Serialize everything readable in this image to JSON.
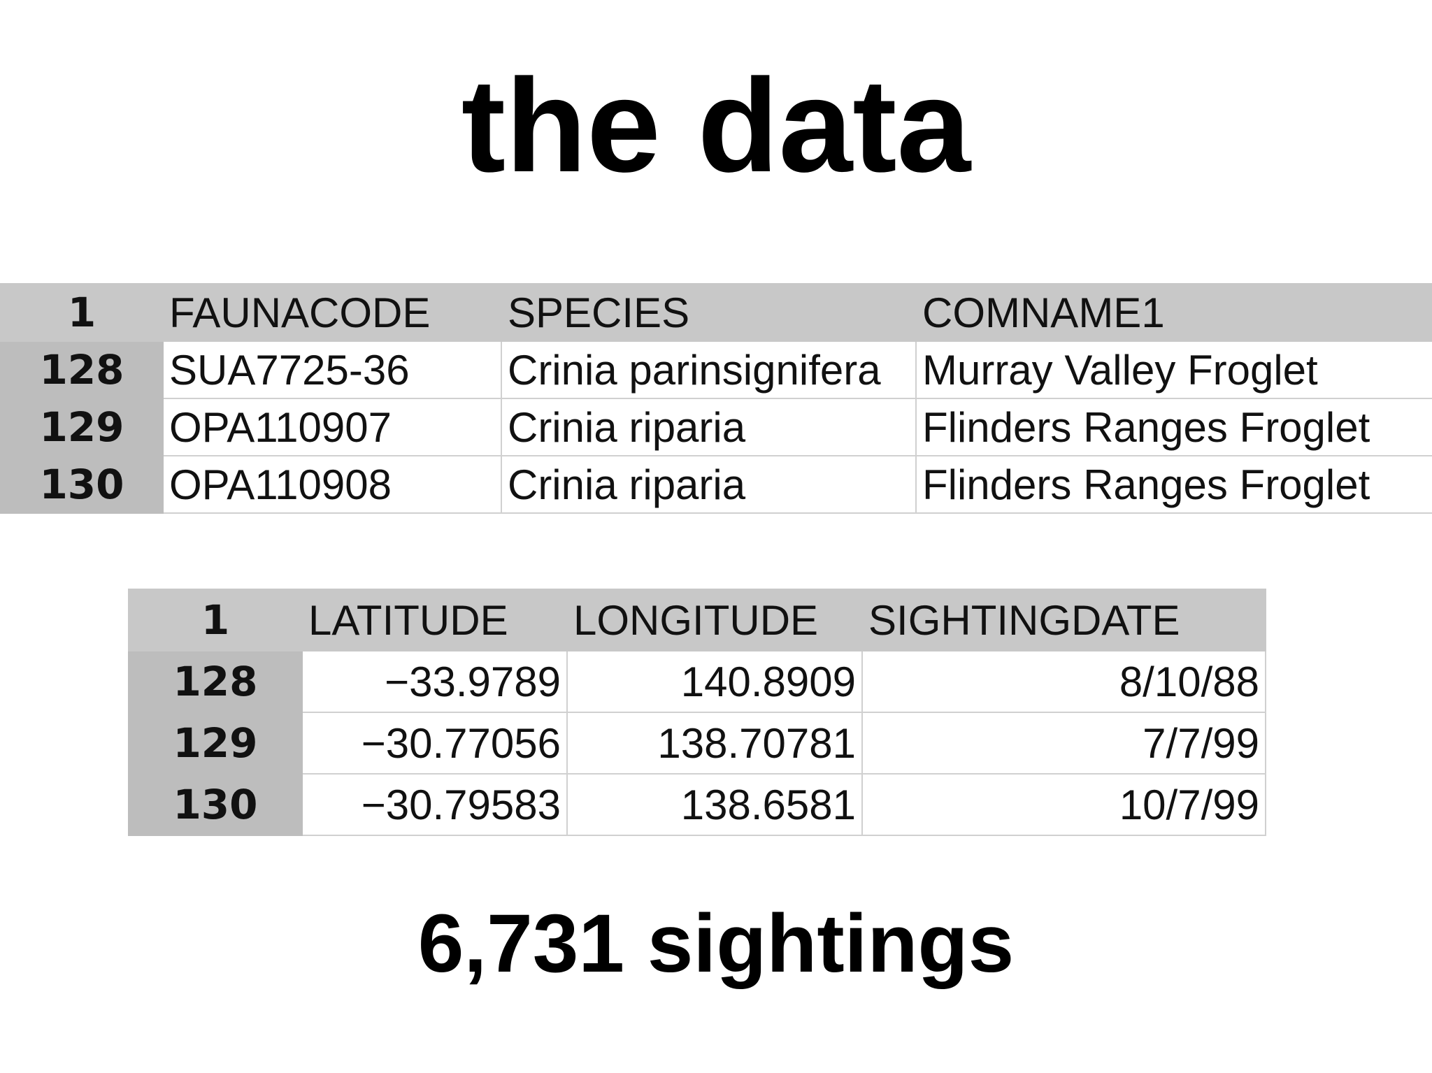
{
  "title": "the data",
  "table1": {
    "header": [
      "1",
      "FAUNACODE",
      "SPECIES",
      "COMNAME1"
    ],
    "rows": [
      [
        "128",
        "SUA7725-36",
        "Crinia parinsignifera",
        "Murray Valley Froglet"
      ],
      [
        "129",
        "OPA110907",
        "Crinia riparia",
        "Flinders Ranges Froglet"
      ],
      [
        "130",
        "OPA110908",
        "Crinia riparia",
        "Flinders Ranges Froglet"
      ]
    ]
  },
  "table2": {
    "header": [
      "1",
      "LATITUDE",
      "LONGITUDE",
      "SIGHTINGDATE"
    ],
    "rows": [
      [
        "128",
        "−33.9789",
        "140.8909",
        "8/10/88"
      ],
      [
        "129",
        "−30.77056",
        "138.70781",
        "7/7/99"
      ],
      [
        "130",
        "−30.79583",
        "138.6581",
        "10/7/99"
      ]
    ]
  },
  "footer": "6,731 sightings"
}
